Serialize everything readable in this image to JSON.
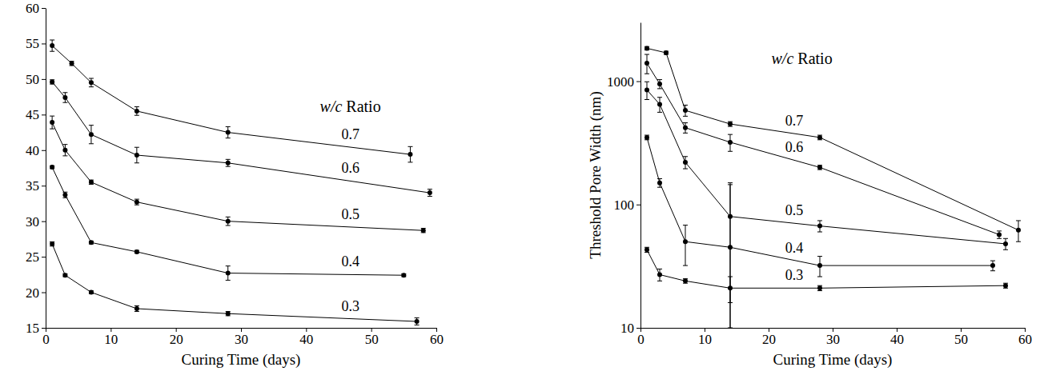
{
  "chart_data": [
    {
      "type": "line",
      "x_label": "Curing Time (days)",
      "legend_title": "w/c Ratio",
      "xlim": [
        0,
        60
      ],
      "xticks": [
        0,
        10,
        20,
        30,
        40,
        50,
        60
      ],
      "ylim": [
        15,
        60
      ],
      "yticks": [
        15,
        20,
        25,
        30,
        35,
        40,
        45,
        50,
        55,
        60
      ],
      "marker": "circle",
      "series": [
        {
          "name": "0.7",
          "color": "#000000",
          "x": [
            1,
            4,
            7,
            14,
            28,
            56
          ],
          "values": [
            54.7,
            52.2,
            49.5,
            45.5,
            42.5,
            39.4
          ],
          "errors": [
            0.8,
            0.3,
            0.6,
            0.6,
            0.8,
            1.1
          ]
        },
        {
          "name": "0.6",
          "color": "#000000",
          "x": [
            1,
            3,
            7,
            14,
            28,
            59
          ],
          "values": [
            49.6,
            47.4,
            42.2,
            39.3,
            38.2,
            34.0
          ],
          "errors": [
            0.3,
            0.7,
            1.3,
            1.1,
            0.5,
            0.5
          ]
        },
        {
          "name": "0.5",
          "color": "#000000",
          "x": [
            1,
            3,
            7,
            14,
            28,
            58
          ],
          "values": [
            43.9,
            40.0,
            35.5,
            32.7,
            30.0,
            28.7
          ],
          "errors": [
            0.9,
            0.8,
            0.3,
            0.4,
            0.6,
            0.3
          ]
        },
        {
          "name": "0.4",
          "color": "#000000",
          "x": [
            1,
            3,
            7,
            14,
            28,
            55
          ],
          "values": [
            37.6,
            33.7,
            27.0,
            25.7,
            22.7,
            22.4
          ],
          "errors": [
            0.2,
            0.4,
            0.2,
            0.2,
            1.0,
            0.2
          ]
        },
        {
          "name": "0.3",
          "color": "#000000",
          "x": [
            1,
            3,
            7,
            14,
            28,
            57
          ],
          "values": [
            26.8,
            22.4,
            20.0,
            17.7,
            17.0,
            15.9
          ],
          "errors": [
            0.3,
            0.2,
            0.2,
            0.4,
            0.3,
            0.5
          ]
        }
      ]
    },
    {
      "type": "line",
      "x_label": "Curing Time (days)",
      "y_label": "Threshold Pore Width (nm)",
      "legend_title": "w/c Ratio",
      "log": "y",
      "xlim": [
        0,
        60
      ],
      "xticks": [
        0,
        10,
        20,
        30,
        40,
        50,
        60
      ],
      "ylim": [
        10,
        3000
      ],
      "yticks": [
        10,
        100,
        1000
      ],
      "marker": "circle",
      "series": [
        {
          "name": "0.7",
          "color": "#000000",
          "x": [
            1,
            4,
            7,
            14,
            28,
            59
          ],
          "values": [
            1850,
            1700,
            580,
            450,
            350,
            62
          ],
          "errors": [
            60,
            50,
            60,
            20,
            15,
            12
          ]
        },
        {
          "name": "0.6",
          "color": "#000000",
          "x": [
            1,
            3,
            7,
            14,
            28,
            56
          ],
          "values": [
            1400,
            950,
            420,
            320,
            200,
            57
          ],
          "errors": [
            250,
            80,
            40,
            50,
            8,
            4
          ]
        },
        {
          "name": "0.5",
          "color": "#000000",
          "x": [
            1,
            3,
            7,
            14,
            28,
            57
          ],
          "values": [
            850,
            650,
            220,
            80,
            67,
            48
          ],
          "errors": [
            140,
            90,
            25,
            70,
            7,
            5
          ]
        },
        {
          "name": "0.4",
          "color": "#000000",
          "x": [
            1,
            3,
            7,
            14,
            28,
            55
          ],
          "values": [
            350,
            150,
            50,
            45,
            32,
            32
          ],
          "errors": [
            15,
            12,
            18,
            100,
            6,
            3
          ]
        },
        {
          "name": "0.3",
          "color": "#000000",
          "x": [
            1,
            3,
            7,
            14,
            28,
            57
          ],
          "values": [
            43,
            27,
            24,
            21,
            21,
            22
          ],
          "errors": [
            2,
            3,
            1,
            5,
            1,
            1
          ]
        }
      ]
    }
  ]
}
